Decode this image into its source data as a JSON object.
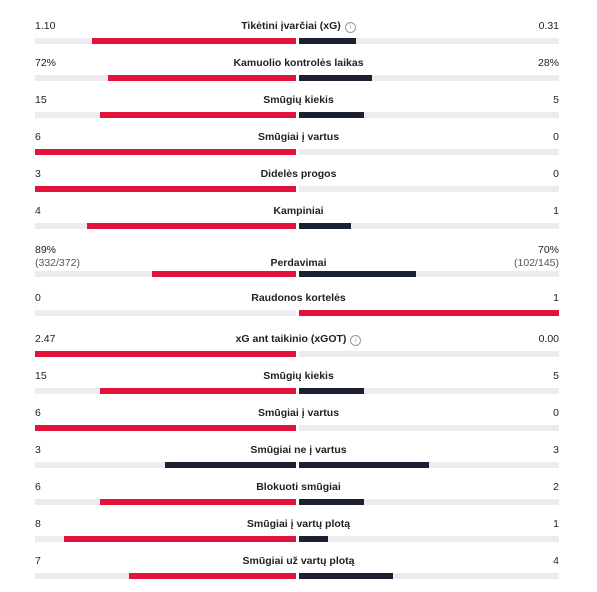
{
  "colors": {
    "home_win": "#e3123d",
    "home_lose": "#1b2133",
    "away_win": "#e3123d",
    "away_lose": "#1b2133"
  },
  "stats": [
    {
      "label": "Tikėtini įvarčiai (xG)",
      "home": "1.10",
      "away": "0.31",
      "home_share": 0.78,
      "away_share": 0.22,
      "info": true
    },
    {
      "label": "Kamuolio kontrolės laikas",
      "home": "72%",
      "away": "28%",
      "home_share": 0.72,
      "away_share": 0.28
    },
    {
      "label": "Smūgių kiekis",
      "home": "15",
      "away": "5",
      "home_share": 0.75,
      "away_share": 0.25
    },
    {
      "label": "Smūgiai į vartus",
      "home": "6",
      "away": "0",
      "home_share": 1.0,
      "away_share": 0.0
    },
    {
      "label": "Didelės progos",
      "home": "3",
      "away": "0",
      "home_share": 1.0,
      "away_share": 0.0
    },
    {
      "label": "Kampiniai",
      "home": "4",
      "away": "1",
      "home_share": 0.8,
      "away_share": 0.2
    },
    {
      "label": "Perdavimai",
      "home": "89%",
      "away": "70%",
      "home_sub": "(332/372)",
      "away_sub": "(102/145)",
      "home_share": 0.55,
      "away_share": 0.45
    },
    {
      "label": "Raudonos kortelės",
      "home": "0",
      "away": "1",
      "home_share": 0.0,
      "away_share": 1.0,
      "away_leads": true
    },
    {
      "label": "xG ant taikinio (xGOT)",
      "home": "2.47",
      "away": "0.00",
      "home_share": 1.0,
      "away_share": 0.0,
      "info": true
    },
    {
      "label": "Smūgių kiekis",
      "home": "15",
      "away": "5",
      "home_share": 0.75,
      "away_share": 0.25
    },
    {
      "label": "Smūgiai į vartus",
      "home": "6",
      "away": "0",
      "home_share": 1.0,
      "away_share": 0.0
    },
    {
      "label": "Smūgiai ne į vartus",
      "home": "3",
      "away": "3",
      "home_share": 0.5,
      "away_share": 0.5,
      "tie": true
    },
    {
      "label": "Blokuoti smūgiai",
      "home": "6",
      "away": "2",
      "home_share": 0.75,
      "away_share": 0.25
    },
    {
      "label": "Smūgiai į vartų plotą",
      "home": "8",
      "away": "1",
      "home_share": 0.89,
      "away_share": 0.11
    },
    {
      "label": "Smūgiai už vartų plotą",
      "home": "7",
      "away": "4",
      "home_share": 0.64,
      "away_share": 0.36
    }
  ]
}
